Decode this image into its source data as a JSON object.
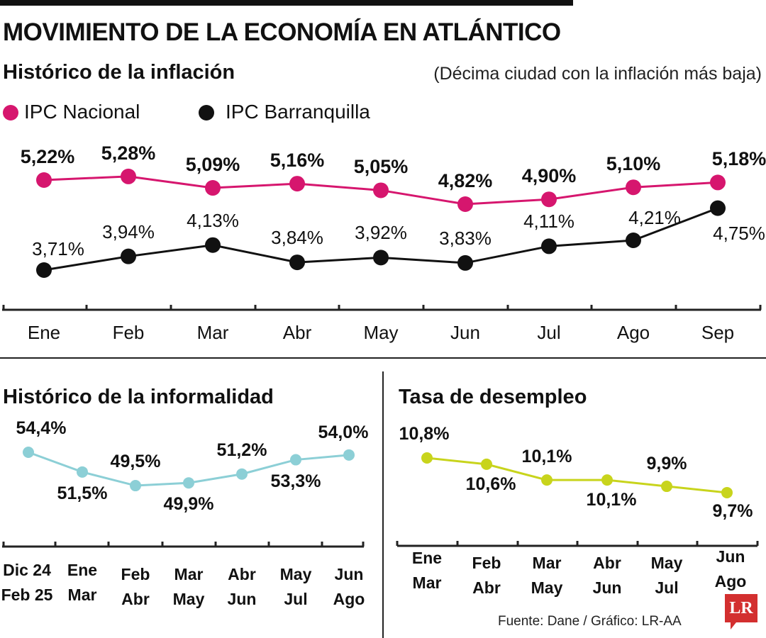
{
  "header": {
    "title": "MOVIMIENTO DE LA ECONOMÍA EN ATLÁNTICO"
  },
  "colors": {
    "nacional": "#d6166e",
    "barranquilla": "#111111",
    "informalidad": "#8ccfd6",
    "desempleo": "#c8d41c"
  },
  "chart_data": [
    {
      "type": "line",
      "title": "Histórico de la inflación",
      "subtitle": "(Décima ciudad con la inflación más baja)",
      "legend": [
        "IPC Nacional",
        "IPC Barranquilla"
      ],
      "categories": [
        "Ene",
        "Feb",
        "Mar",
        "Abr",
        "May",
        "Jun",
        "Jul",
        "Ago",
        "Sep"
      ],
      "series": [
        {
          "name": "IPC Nacional",
          "values": [
            5.22,
            5.28,
            5.09,
            5.16,
            5.05,
            4.82,
            4.9,
            5.1,
            5.18
          ],
          "labels": [
            "5,22%",
            "5,28%",
            "5,09%",
            "5,16%",
            "5,05%",
            "4,82%",
            "4,90%",
            "5,10%",
            "5,18%"
          ]
        },
        {
          "name": "IPC Barranquilla",
          "values": [
            3.71,
            3.94,
            4.13,
            3.84,
            3.92,
            3.83,
            4.11,
            4.21,
            4.75
          ],
          "labels": [
            "3,71%",
            "3,94%",
            "4,13%",
            "3,84%",
            "3,92%",
            "3,83%",
            "4,11%",
            "4,21%",
            "4,75%"
          ]
        }
      ]
    },
    {
      "type": "line",
      "title": "Histórico de la informalidad",
      "categories": [
        [
          "Dic 24",
          "Feb 25"
        ],
        [
          "Ene",
          "Mar"
        ],
        [
          "Feb",
          "Abr"
        ],
        [
          "Mar",
          "May"
        ],
        [
          "Abr",
          "Jun"
        ],
        [
          "May",
          "Jul"
        ],
        [
          "Jun",
          "Ago"
        ]
      ],
      "values": [
        54.4,
        51.5,
        49.5,
        49.9,
        51.2,
        53.3,
        54.0
      ],
      "labels": [
        "54,4%",
        "51,5%",
        "49,5%",
        "49,9%",
        "51,2%",
        "53,3%",
        "54,0%"
      ]
    },
    {
      "type": "line",
      "title": "Tasa de desempleo",
      "categories": [
        [
          "Ene",
          "Mar"
        ],
        [
          "Feb",
          "Abr"
        ],
        [
          "Mar",
          "May"
        ],
        [
          "Abr",
          "Jun"
        ],
        [
          "May",
          "Jul"
        ],
        [
          "Jun",
          "Ago"
        ]
      ],
      "values": [
        10.8,
        10.6,
        10.1,
        10.1,
        9.9,
        9.7
      ],
      "labels": [
        "10,8%",
        "10,6%",
        "10,1%",
        "10,1%",
        "9,9%",
        "9,7%"
      ]
    }
  ],
  "footer": {
    "source": "Fuente: Dane / Gráfico: LR-AA",
    "logo": "LR"
  }
}
